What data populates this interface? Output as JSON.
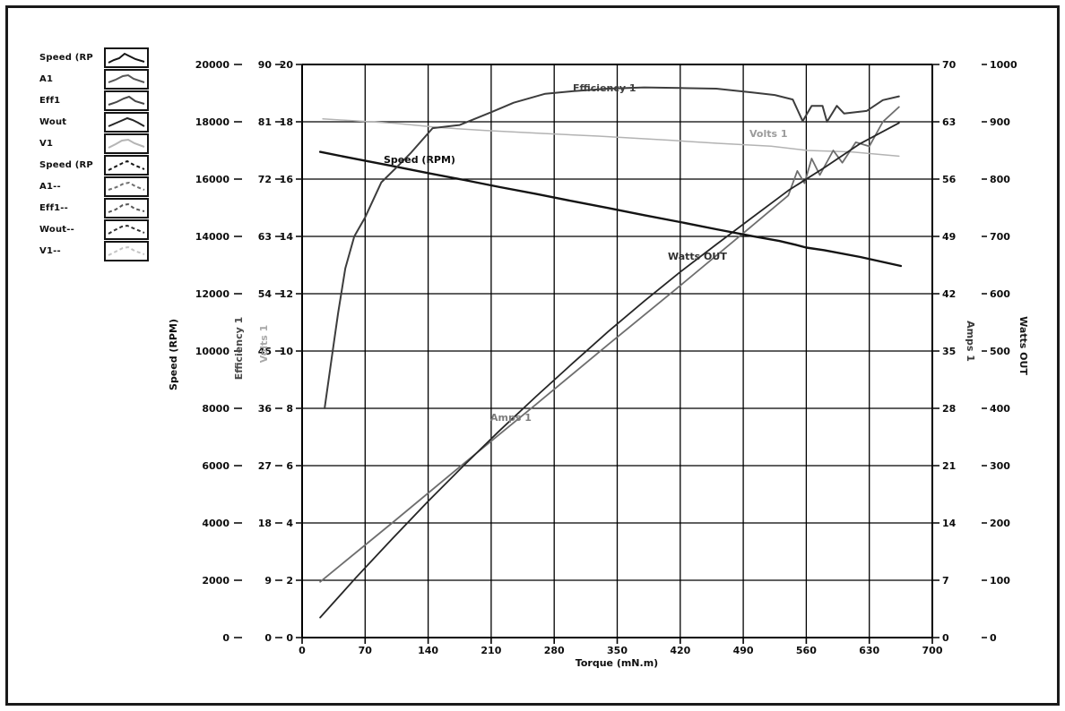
{
  "legend": {
    "items": [
      {
        "label": "Speed (RP",
        "line_style": "solid"
      },
      {
        "label": "A1",
        "line_style": "solid"
      },
      {
        "label": "Eff1",
        "line_style": "solid"
      },
      {
        "label": "Wout",
        "line_style": "solid"
      },
      {
        "label": "V1",
        "line_style": "solid"
      },
      {
        "label": "Speed (RP",
        "line_style": "dashed"
      },
      {
        "label": "A1--",
        "line_style": "dashed"
      },
      {
        "label": "Eff1--",
        "line_style": "dashed"
      },
      {
        "label": "Wout--",
        "line_style": "dashed"
      },
      {
        "label": "V1--",
        "line_style": "dashed"
      }
    ]
  },
  "axes": {
    "x": {
      "title": "Torque (mN.m)",
      "ticks": [
        "0",
        "70",
        "140",
        "210",
        "280",
        "350",
        "420",
        "490",
        "560",
        "630",
        "700"
      ]
    },
    "speed": {
      "title": "Speed (RPM)",
      "ticks": [
        "20000",
        "18000",
        "16000",
        "14000",
        "12000",
        "10000",
        "8000",
        "6000",
        "4000",
        "2000",
        "0"
      ]
    },
    "efficiency": {
      "title": "Efficiency 1",
      "ticks": [
        "90",
        "81",
        "72",
        "63",
        "54",
        "45",
        "36",
        "27",
        "18",
        "9",
        "0"
      ]
    },
    "volts": {
      "title": "Volts 1",
      "ticks": [
        "20",
        "18",
        "16",
        "14",
        "12",
        "10",
        "8",
        "6",
        "4",
        "2",
        "0"
      ]
    },
    "amps": {
      "title": "Amps 1",
      "ticks": [
        "70",
        "63",
        "56",
        "49",
        "42",
        "35",
        "28",
        "21",
        "14",
        "7",
        "0"
      ]
    },
    "watts": {
      "title": "Watts OUT",
      "ticks": [
        "1000",
        "900",
        "800",
        "700",
        "600",
        "500",
        "400",
        "300",
        "200",
        "100",
        "0"
      ]
    }
  },
  "curve_labels": {
    "efficiency": "Efficiency 1",
    "speed": "Speed (RPM)",
    "volts": "Volts 1",
    "watts": "Watts OUT",
    "amps": "Amps 1"
  },
  "chart_data": {
    "type": "line",
    "title": "",
    "xlabel": "Torque (mN.m)",
    "x_range": [
      0,
      700
    ],
    "grid": true,
    "legend_position": "top-left",
    "axis_ranges": {
      "speed": [
        0,
        20000
      ],
      "efficiency": [
        0,
        90
      ],
      "volts": [
        0,
        20
      ],
      "amps": [
        0,
        70
      ],
      "watts": [
        0,
        1000
      ]
    },
    "series": [
      {
        "id": "speed",
        "name": "Speed (RPM)",
        "axis": "speed",
        "range": [
          0,
          20000
        ],
        "color": "#141414",
        "width": 2.4,
        "data": [
          [
            20,
            16950
          ],
          [
            60,
            16700
          ],
          [
            100,
            16460
          ],
          [
            140,
            16210
          ],
          [
            180,
            15970
          ],
          [
            220,
            15720
          ],
          [
            260,
            15480
          ],
          [
            300,
            15230
          ],
          [
            340,
            14990
          ],
          [
            380,
            14740
          ],
          [
            420,
            14500
          ],
          [
            460,
            14250
          ],
          [
            500,
            14010
          ],
          [
            530,
            13840
          ],
          [
            549,
            13700
          ],
          [
            560,
            13610
          ],
          [
            580,
            13520
          ],
          [
            620,
            13280
          ],
          [
            665,
            12970
          ]
        ]
      },
      {
        "id": "efficiency",
        "name": "Efficiency 1",
        "axis": "efficiency",
        "range": [
          0,
          90
        ],
        "color": "#3d3d3d",
        "width": 2.0,
        "data": [
          [
            25,
            36
          ],
          [
            33,
            44
          ],
          [
            40,
            51
          ],
          [
            48,
            58
          ],
          [
            58,
            63
          ],
          [
            70,
            66
          ],
          [
            88,
            71.5
          ],
          [
            106,
            74
          ],
          [
            120,
            76
          ],
          [
            145,
            80
          ],
          [
            175,
            80.5
          ],
          [
            210,
            82.5
          ],
          [
            235,
            84
          ],
          [
            270,
            85.4
          ],
          [
            300,
            85.8
          ],
          [
            340,
            86.2
          ],
          [
            380,
            86.4
          ],
          [
            420,
            86.3
          ],
          [
            460,
            86.2
          ],
          [
            500,
            85.6
          ],
          [
            525,
            85.2
          ],
          [
            545,
            84.5
          ],
          [
            556,
            81.1
          ],
          [
            566,
            83.5
          ],
          [
            578,
            83.5
          ],
          [
            583,
            81.0
          ],
          [
            594,
            83.5
          ],
          [
            602,
            82.3
          ],
          [
            615,
            82.5
          ],
          [
            627,
            82.7
          ],
          [
            645,
            84.4
          ],
          [
            663,
            85.0
          ]
        ]
      },
      {
        "id": "volts",
        "name": "Volts 1",
        "axis": "volts",
        "range": [
          0,
          20
        ],
        "color": "#b3b3b3",
        "width": 1.5,
        "data": [
          [
            23,
            18.1
          ],
          [
            103,
            17.95
          ],
          [
            152,
            17.8
          ],
          [
            202,
            17.7
          ],
          [
            262,
            17.6
          ],
          [
            329,
            17.5
          ],
          [
            411,
            17.35
          ],
          [
            461,
            17.25
          ],
          [
            521,
            17.15
          ],
          [
            561,
            17.0
          ],
          [
            610,
            16.95
          ],
          [
            663,
            16.8
          ]
        ]
      },
      {
        "id": "amps",
        "name": "Amps 1",
        "axis": "amps",
        "range": [
          0,
          70
        ],
        "color": "#6e6e6e",
        "width": 1.8,
        "data": [
          [
            20,
            6.8
          ],
          [
            100,
            14.0
          ],
          [
            180,
            21.3
          ],
          [
            260,
            28.5
          ],
          [
            340,
            35.8
          ],
          [
            420,
            43.0
          ],
          [
            500,
            50.3
          ],
          [
            540,
            54.0
          ],
          [
            550,
            57.0
          ],
          [
            558,
            55.5
          ],
          [
            566,
            58.5
          ],
          [
            575,
            56.5
          ],
          [
            590,
            59.5
          ],
          [
            600,
            58.0
          ],
          [
            615,
            60.5
          ],
          [
            630,
            60.0
          ],
          [
            645,
            63.0
          ],
          [
            663,
            64.8
          ]
        ]
      },
      {
        "id": "watts",
        "name": "Watts OUT",
        "axis": "watts",
        "range": [
          0,
          1000
        ],
        "color": "#262626",
        "width": 1.8,
        "data": [
          [
            20,
            35
          ],
          [
            60,
            105
          ],
          [
            100,
            172
          ],
          [
            140,
            238
          ],
          [
            180,
            301
          ],
          [
            220,
            362
          ],
          [
            260,
            421
          ],
          [
            300,
            478
          ],
          [
            340,
            534
          ],
          [
            380,
            587
          ],
          [
            420,
            638
          ],
          [
            460,
            686
          ],
          [
            500,
            733
          ],
          [
            540,
            780
          ],
          [
            580,
            820
          ],
          [
            620,
            862
          ],
          [
            663,
            898
          ]
        ]
      }
    ]
  }
}
